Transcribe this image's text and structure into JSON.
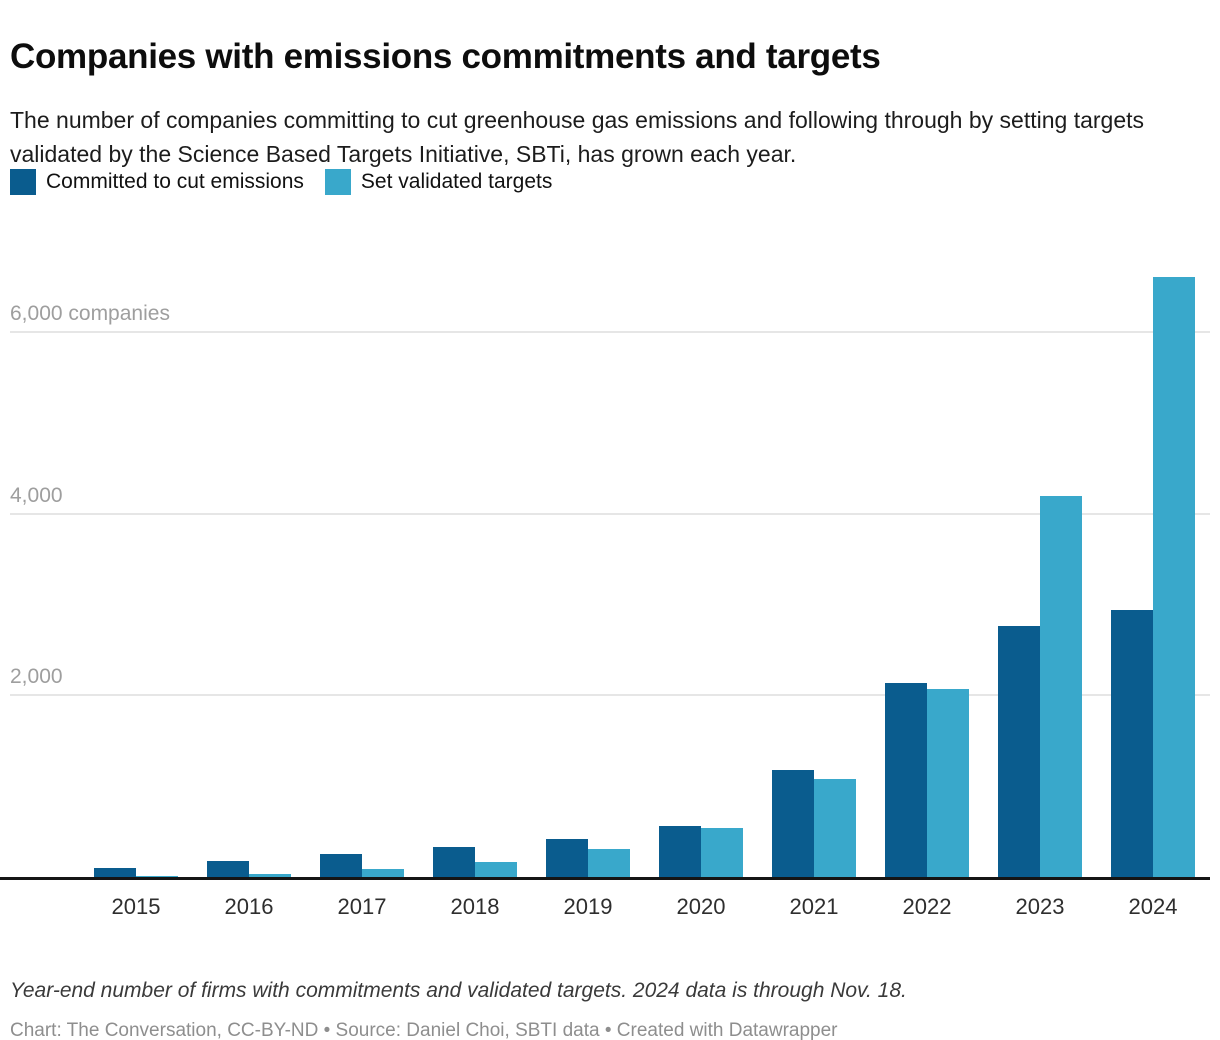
{
  "header": {
    "title": "Companies with emissions commitments and targets",
    "subtitle": "The number of companies committing to cut greenhouse gas emissions and following through by setting targets validated by the Science Based Targets Initiative, SBTi, has grown each year."
  },
  "legend": [
    {
      "label": "Committed to cut emissions",
      "color": "#0a5c8e"
    },
    {
      "label": "Set validated targets",
      "color": "#39a8cb"
    }
  ],
  "chart_data": {
    "type": "bar",
    "title": "Companies with emissions commitments and targets",
    "categories": [
      "2015",
      "2016",
      "2017",
      "2018",
      "2019",
      "2020",
      "2021",
      "2022",
      "2023",
      "2024"
    ],
    "series": [
      {
        "name": "Committed to cut emissions",
        "color": "#0a5c8e",
        "values": [
          100,
          180,
          250,
          330,
          420,
          560,
          1180,
          2140,
          2760,
          2940
        ]
      },
      {
        "name": "Set validated targets",
        "color": "#39a8cb",
        "values": [
          10,
          30,
          90,
          160,
          310,
          540,
          1080,
          2070,
          4190,
          6600
        ]
      }
    ],
    "xlabel": "",
    "ylabel": "companies",
    "yticks": [
      2000,
      4000,
      6000
    ],
    "ytick_labels": [
      "2,000",
      "4,000",
      "6,000 companies"
    ],
    "ylim": [
      0,
      6700
    ],
    "grid": true,
    "legend_position": "top"
  },
  "footer": {
    "note": "Year-end number of firms with commitments and validated targets. 2024 data is through Nov. 18.",
    "credit": "Chart: The Conversation, CC-BY-ND • Source: Daniel Choi, SBTI data • Created with Datawrapper"
  }
}
